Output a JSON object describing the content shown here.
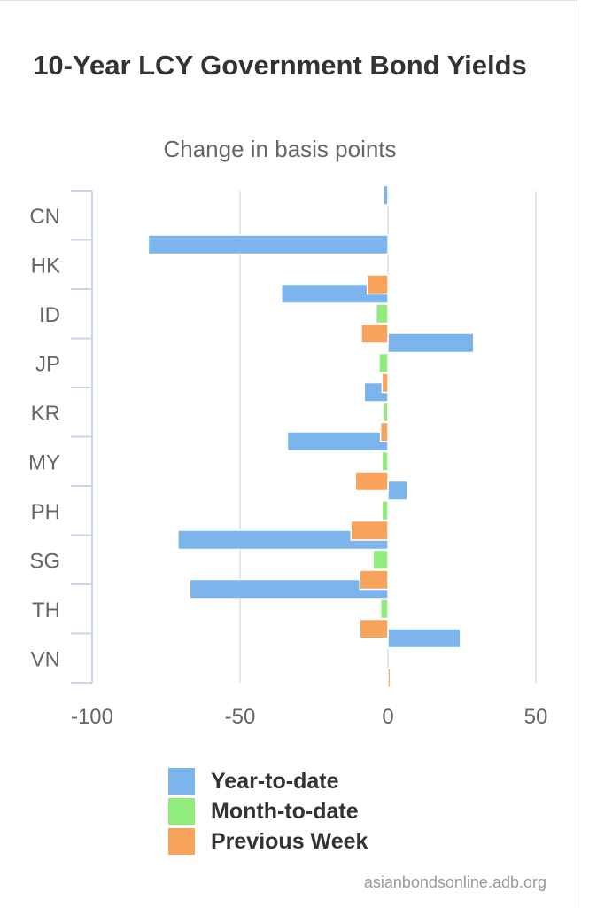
{
  "chart_data": {
    "type": "bar",
    "orientation": "horizontal",
    "title": "10-Year LCY Government Bond Yields",
    "subtitle": "Change in basis points",
    "categories": [
      "CN",
      "HK",
      "ID",
      "JP",
      "KR",
      "MY",
      "PH",
      "SG",
      "TH",
      "VN"
    ],
    "series": [
      {
        "name": "Year-to-date",
        "color": "#7cb5ec",
        "values": [
          -1.5,
          -81,
          -36,
          29,
          -8,
          -34,
          6.5,
          -71,
          -67,
          24.5
        ]
      },
      {
        "name": "Month-to-date",
        "color": "#90ed7d",
        "values": [
          0,
          0,
          -4,
          -3,
          -1.5,
          -2,
          -2,
          -5,
          -2.5,
          0
        ]
      },
      {
        "name": "Previous Week",
        "color": "#f7a35c",
        "values": [
          0,
          -7,
          -9,
          -2,
          -2.5,
          -11,
          -12.5,
          -9.5,
          -9.5,
          0.8
        ]
      }
    ],
    "xlim": [
      -100,
      50
    ],
    "x_ticks": [
      "-100",
      "-50",
      "0",
      "50"
    ],
    "grid": true,
    "legend_position": "bottom"
  },
  "credit": "asianbondsonline.adb.org"
}
